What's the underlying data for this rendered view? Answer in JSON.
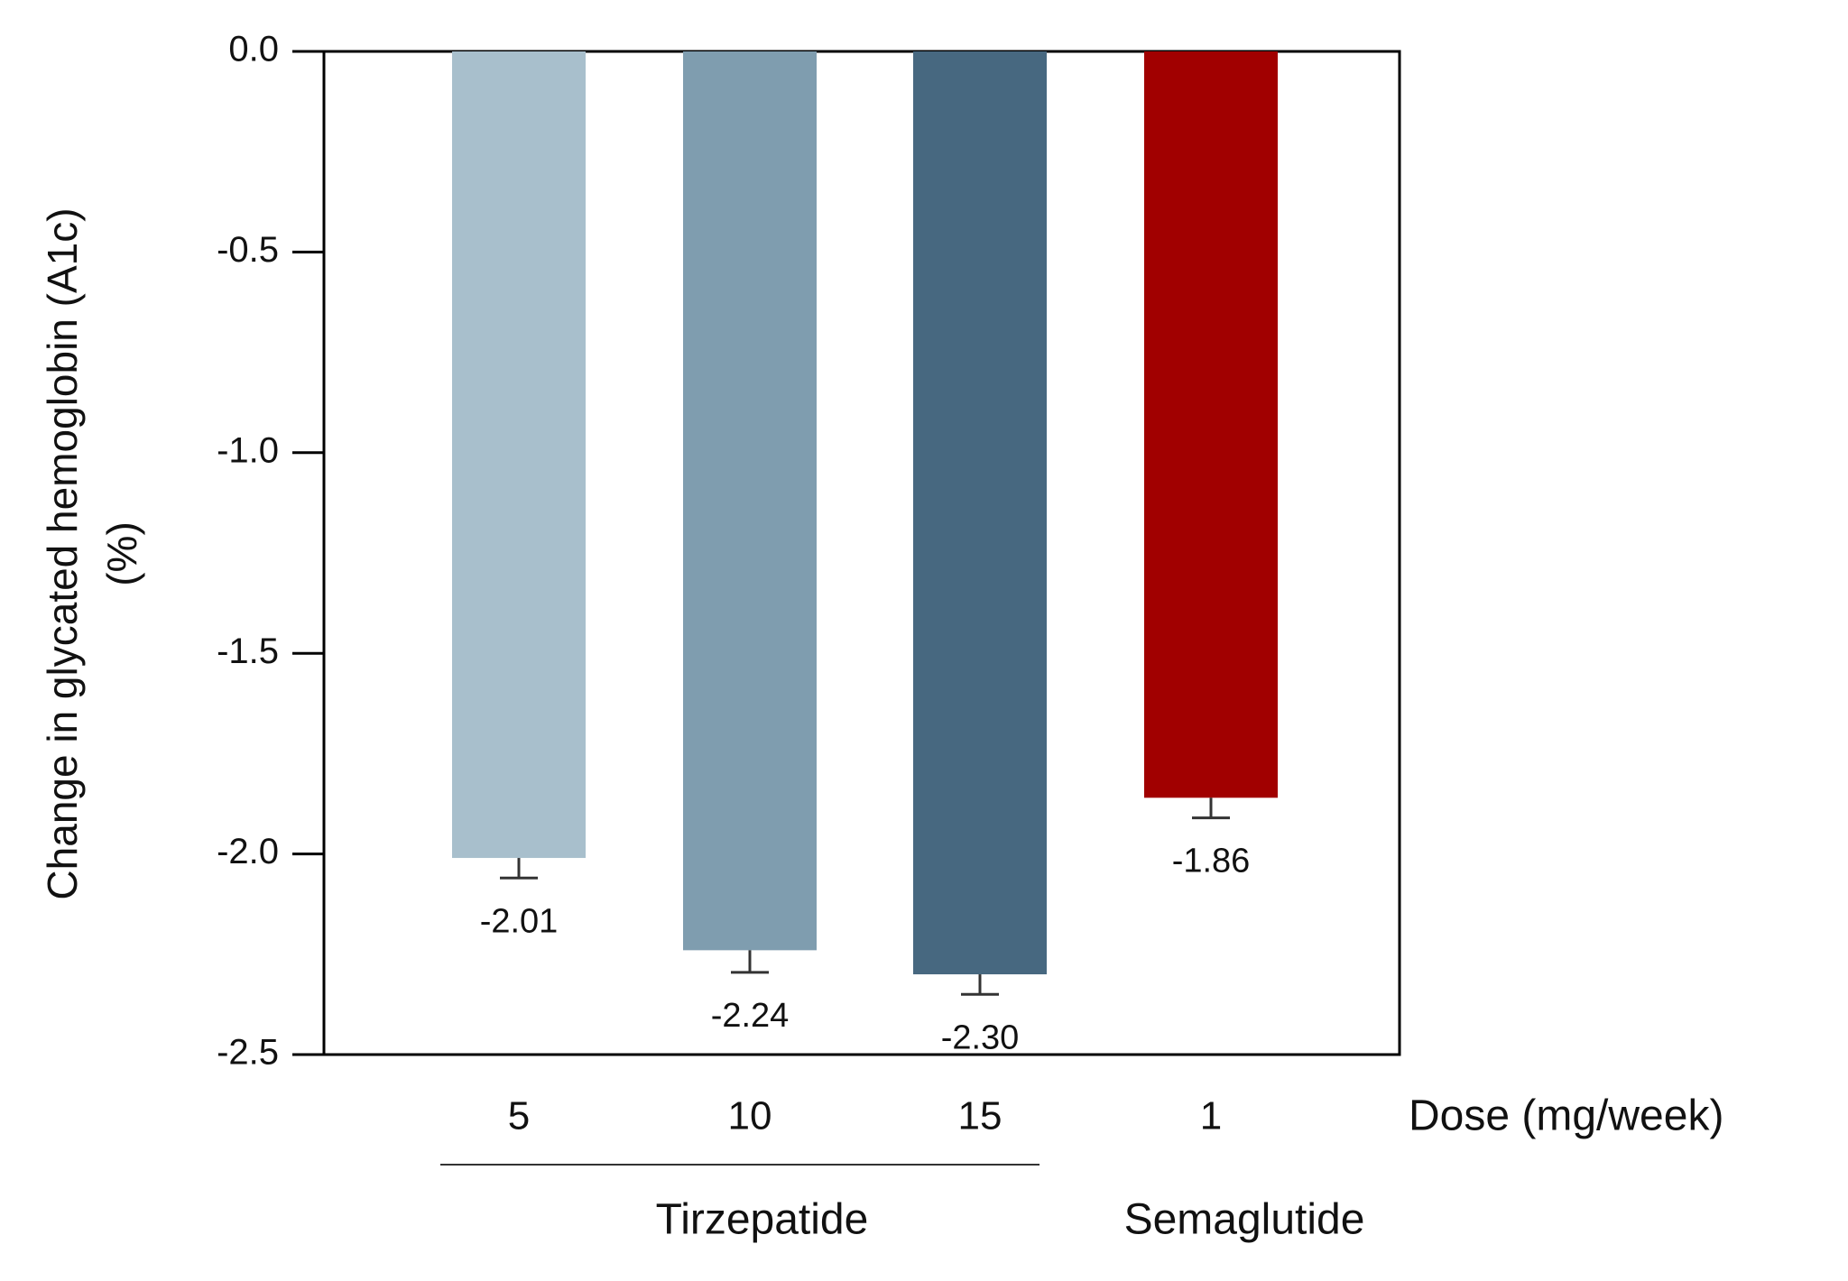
{
  "chart_data": {
    "type": "bar",
    "ylabel_lines": [
      "Change in glycated hemoglobin (A1c)",
      "(%)"
    ],
    "xlabel": "Dose (mg/week)",
    "categories": [
      "5",
      "10",
      "15",
      "1"
    ],
    "category_groups": [
      "Tirzepatide",
      "Tirzepatide",
      "Tirzepatide",
      "Semaglutide"
    ],
    "values": [
      -2.01,
      -2.24,
      -2.3,
      -1.86
    ],
    "value_labels": [
      "-2.01",
      "-2.24",
      "-2.30",
      "-1.86"
    ],
    "errors": [
      0.05,
      0.055,
      0.05,
      0.05
    ],
    "colors": [
      "#a8bfcc",
      "#7f9daf",
      "#476880",
      "#a10000"
    ],
    "ylim": [
      -2.5,
      0
    ],
    "yticks": [
      {
        "value": 0,
        "label": "0.0"
      },
      {
        "value": -0.5,
        "label": "-0.5"
      },
      {
        "value": -1,
        "label": "-1.0"
      },
      {
        "value": -1.5,
        "label": "-1.5"
      },
      {
        "value": -2,
        "label": "-2.0"
      },
      {
        "value": -2.5,
        "label": "-2.5"
      }
    ]
  }
}
